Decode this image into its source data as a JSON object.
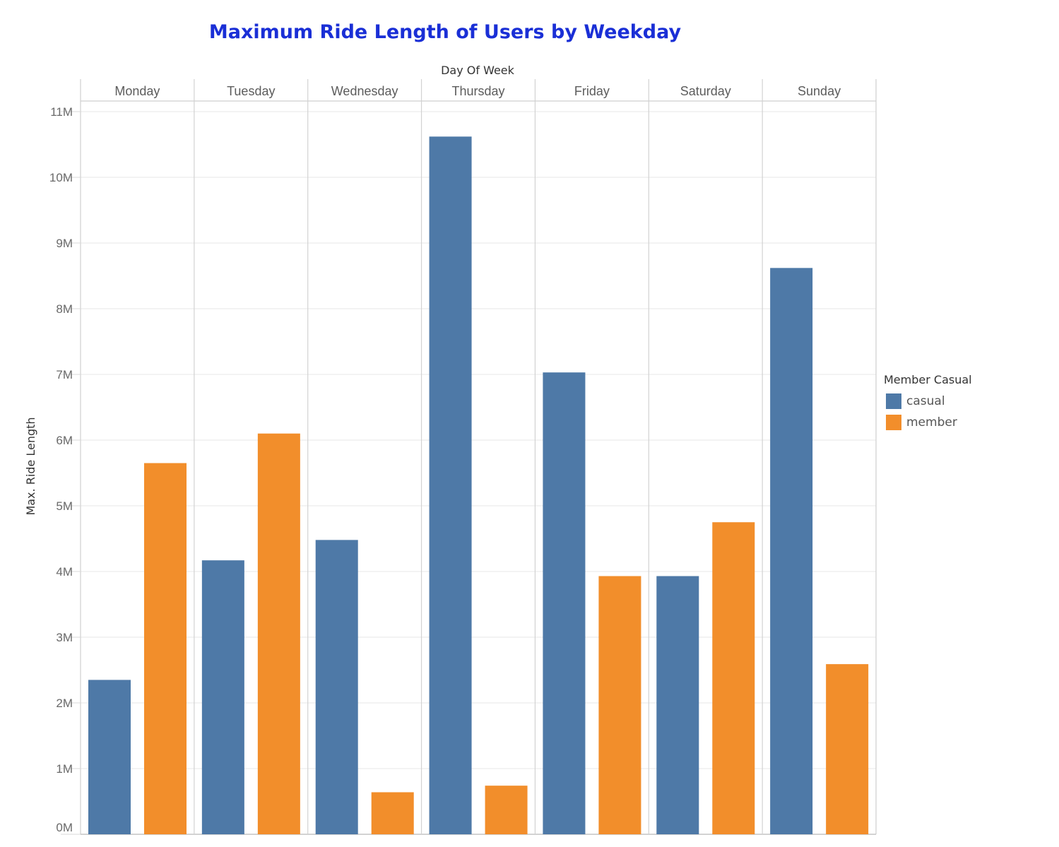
{
  "title": "Maximum Ride Length of Users by Weekday",
  "colors": {
    "casual": "#4e79a7",
    "member": "#f28e2b",
    "title": "#1a2fd6"
  },
  "legend": {
    "title": "Member Casual",
    "items": [
      {
        "label": "casual",
        "color": "#4e79a7"
      },
      {
        "label": "member",
        "color": "#f28e2b"
      }
    ]
  },
  "chart_data": {
    "type": "bar",
    "title": "Maximum Ride Length of Users by Weekday",
    "column_header_title": "Day Of Week",
    "xlabel": "Day Of Week",
    "ylabel": "Max. Ride Length",
    "categories": [
      "Monday",
      "Tuesday",
      "Wednesday",
      "Thursday",
      "Friday",
      "Saturday",
      "Sunday"
    ],
    "series": [
      {
        "name": "casual",
        "color": "#4e79a7",
        "values": [
          2350000,
          4170000,
          4480000,
          10620000,
          7030000,
          3930000,
          8620000
        ]
      },
      {
        "name": "member",
        "color": "#f28e2b",
        "values": [
          5650000,
          6100000,
          640000,
          740000,
          3930000,
          4750000,
          2590000
        ]
      }
    ],
    "ylim": [
      0,
      11000000
    ],
    "yticks": [
      0,
      1000000,
      2000000,
      3000000,
      4000000,
      5000000,
      6000000,
      7000000,
      8000000,
      9000000,
      10000000,
      11000000
    ],
    "ytick_labels": [
      "0M",
      "1M",
      "2M",
      "3M",
      "4M",
      "5M",
      "6M",
      "7M",
      "8M",
      "9M",
      "10M",
      "11M"
    ],
    "grid": true,
    "legend_position": "right"
  }
}
